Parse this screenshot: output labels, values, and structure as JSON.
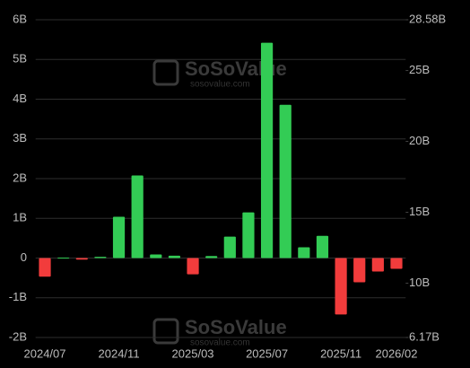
{
  "chart_data": {
    "type": "bar",
    "categories": [
      "2024/07",
      null,
      null,
      null,
      "2024/11",
      null,
      null,
      null,
      "2025/03",
      null,
      null,
      null,
      "2025/07",
      null,
      null,
      null,
      "2025/11",
      null,
      null,
      "2026/02"
    ],
    "values": [
      -0.47,
      0.01,
      -0.04,
      0.03,
      1.04,
      2.08,
      0.09,
      0.06,
      -0.41,
      0.05,
      0.54,
      1.15,
      5.42,
      3.86,
      0.27,
      0.56,
      -1.42,
      -0.61,
      -0.34,
      -0.27
    ],
    "positive_color": "#33cc55",
    "negative_color": "#f23c3c",
    "ylim": [
      -2,
      6
    ],
    "yticks": [
      {
        "value": -2,
        "label": "-2B"
      },
      {
        "value": -1,
        "label": "-1B"
      },
      {
        "value": 0,
        "label": "0"
      },
      {
        "value": 1,
        "label": "1B"
      },
      {
        "value": 2,
        "label": "2B"
      },
      {
        "value": 3,
        "label": "3B"
      },
      {
        "value": 4,
        "label": "4B"
      },
      {
        "value": 5,
        "label": "5B"
      },
      {
        "value": 6,
        "label": "6B"
      }
    ],
    "y2lim": [
      6.17,
      28.58
    ],
    "y2ticks": [
      {
        "value": 6.17,
        "label": "6.17B"
      },
      {
        "value": 10,
        "label": "10B"
      },
      {
        "value": 15,
        "label": "15B"
      },
      {
        "value": 20,
        "label": "20B"
      },
      {
        "value": 25,
        "label": "25B"
      },
      {
        "value": 28.58,
        "label": "28.58B"
      }
    ],
    "grid": true,
    "watermark": {
      "brand": "SoSoValue",
      "site": "sosovalue.com"
    }
  }
}
